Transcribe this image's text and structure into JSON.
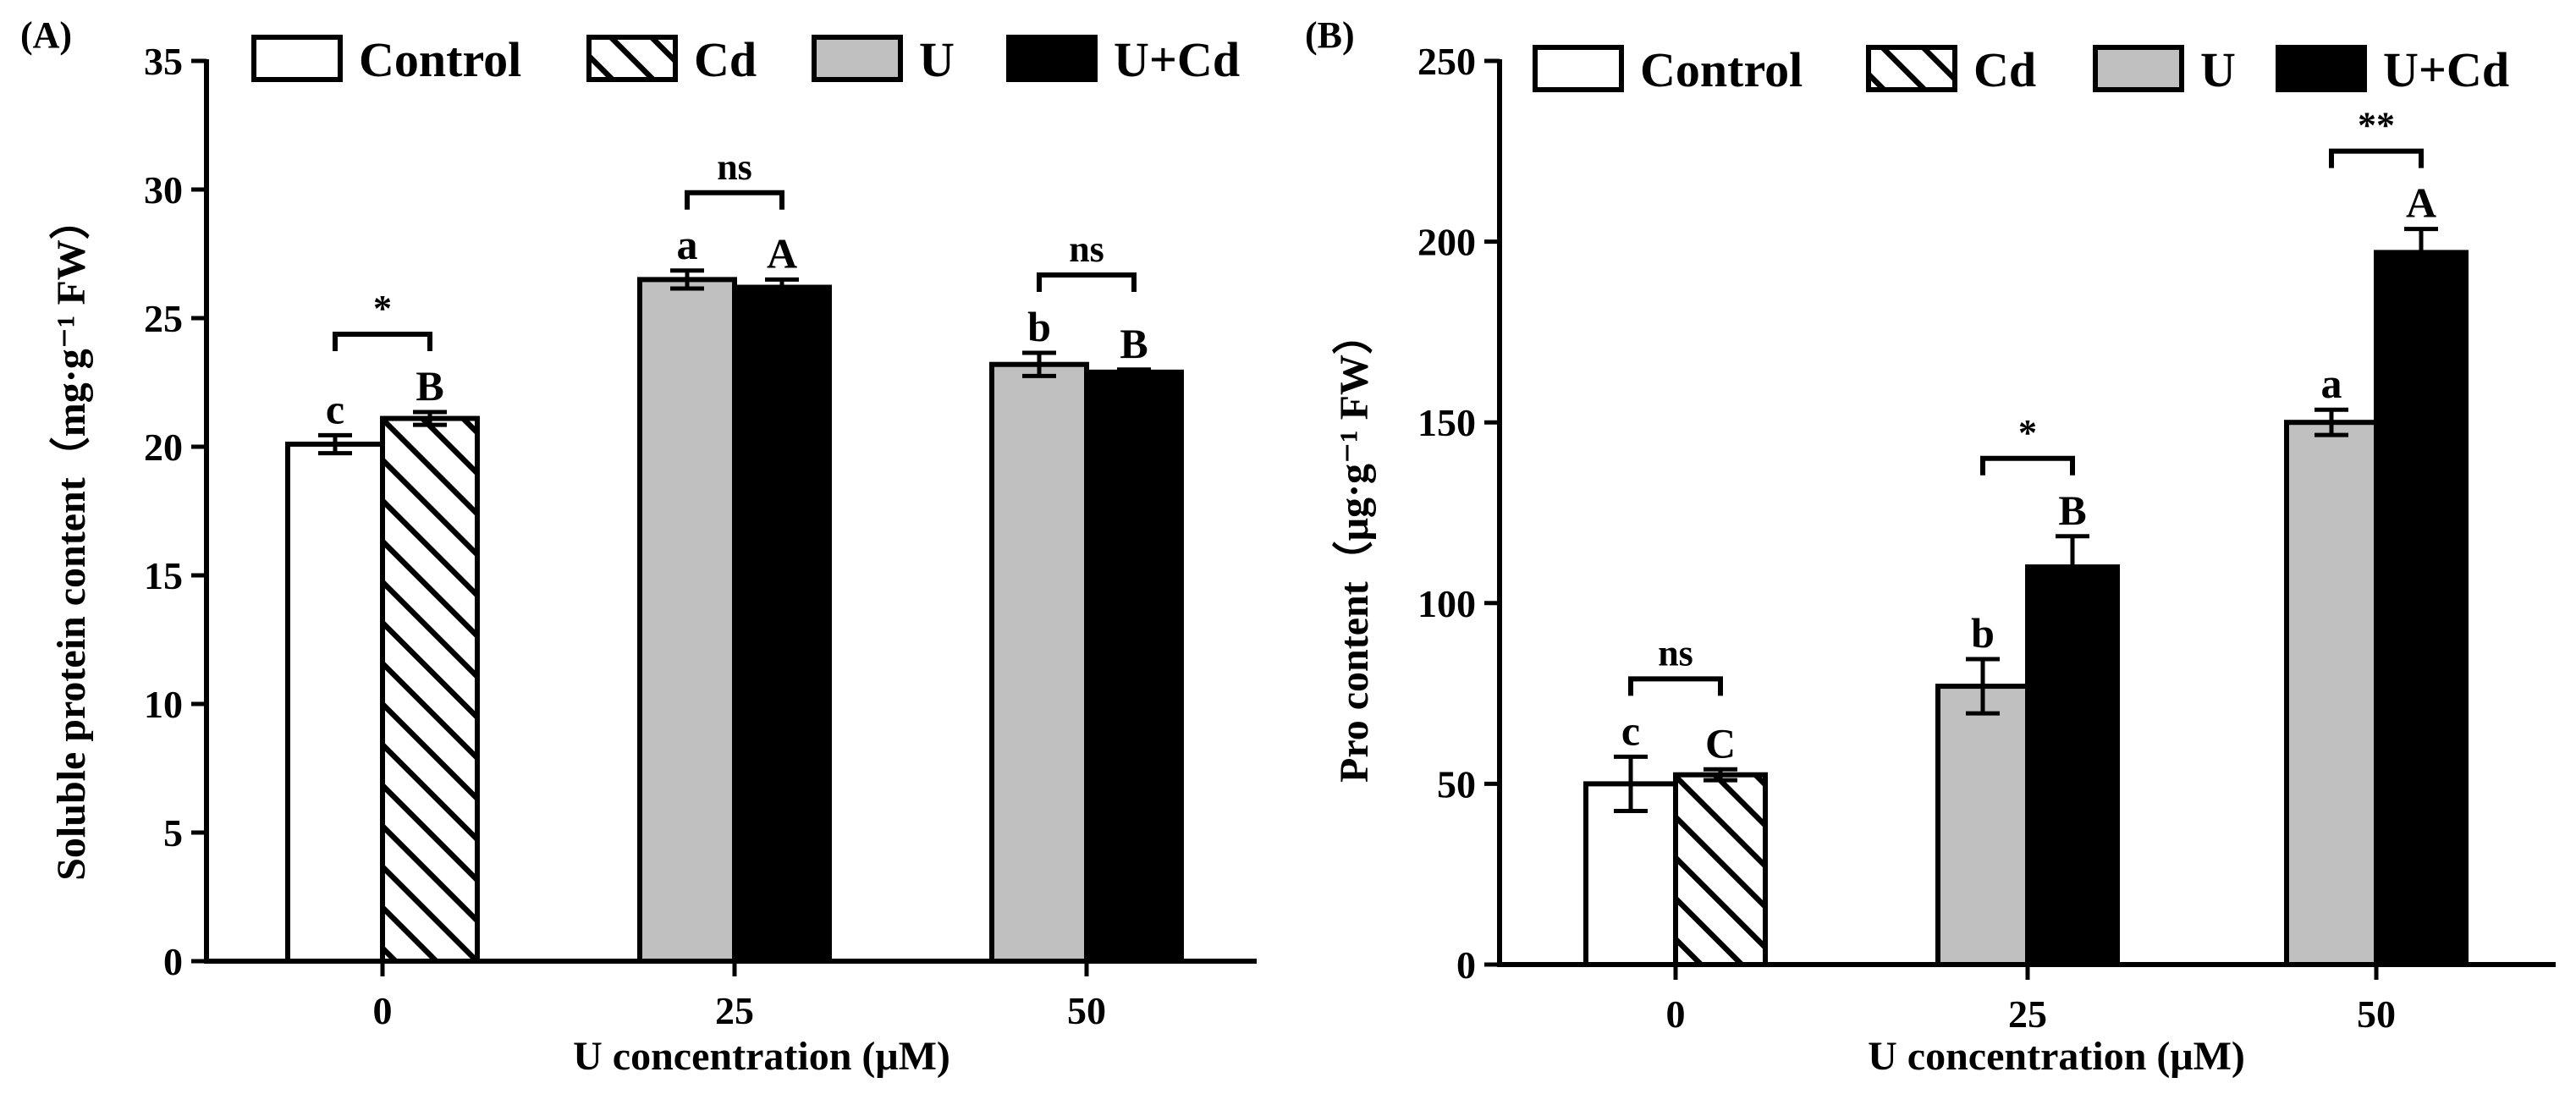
{
  "colors": {
    "control": "#ffffff",
    "cd": "hatch",
    "u": "#c0c0c0",
    "ucd": "#000000",
    "stroke": "#000000"
  },
  "chart_data": [
    {
      "type": "bar",
      "panel_label": "(A)",
      "title": "",
      "xlabel": "U concentration (μM)",
      "ylabel": "Soluble protein content（mg·g⁻¹ FW）",
      "ylim": [
        0,
        35
      ],
      "yticks": [
        0,
        5,
        10,
        15,
        20,
        25,
        30,
        35
      ],
      "legend": [
        "Control",
        "Cd",
        "U",
        "U+Cd"
      ],
      "legend_position": "top",
      "categories": [
        "0",
        "25",
        "50"
      ],
      "groups": [
        {
          "category": "0",
          "bars": [
            {
              "series": "Control",
              "value": 20.1,
              "error": 0.35,
              "letter": "c"
            },
            {
              "series": "Cd",
              "value": 21.1,
              "error": 0.25,
              "letter": "B"
            }
          ],
          "significance": "*"
        },
        {
          "category": "25",
          "bars": [
            {
              "series": "U",
              "value": 26.5,
              "error": 0.35,
              "letter": "a"
            },
            {
              "series": "U+Cd",
              "value": 26.2,
              "error": 0.3,
              "letter": "A"
            }
          ],
          "significance": "ns"
        },
        {
          "category": "50",
          "bars": [
            {
              "series": "U",
              "value": 23.2,
              "error": 0.45,
              "letter": "b"
            },
            {
              "series": "U+Cd",
              "value": 22.9,
              "error": 0.1,
              "letter": "B"
            }
          ],
          "significance": "ns"
        }
      ]
    },
    {
      "type": "bar",
      "panel_label": "(B)",
      "title": "",
      "xlabel": "U concentration (μM)",
      "ylabel": "Pro content（μg·g⁻¹ FW）",
      "ylim": [
        0,
        250
      ],
      "yticks": [
        0,
        50,
        100,
        150,
        200,
        250
      ],
      "legend": [
        "Control",
        "Cd",
        "U",
        "U+Cd"
      ],
      "legend_position": "top",
      "categories": [
        "0",
        "25",
        "50"
      ],
      "groups": [
        {
          "category": "0",
          "bars": [
            {
              "series": "Control",
              "value": 50,
              "error": 7.5,
              "letter": "c"
            },
            {
              "series": "Cd",
              "value": 52.5,
              "error": 1.5,
              "letter": "C"
            }
          ],
          "significance": "ns"
        },
        {
          "category": "25",
          "bars": [
            {
              "series": "U",
              "value": 77,
              "error": 7.5,
              "letter": "b"
            },
            {
              "series": "U+Cd",
              "value": 110,
              "error": 8.5,
              "letter": "B"
            }
          ],
          "significance": "*"
        },
        {
          "category": "50",
          "bars": [
            {
              "series": "U",
              "value": 150,
              "error": 3.5,
              "letter": "a"
            },
            {
              "series": "U+Cd",
              "value": 197,
              "error": 6.5,
              "letter": "A"
            }
          ],
          "significance": "**"
        }
      ]
    }
  ]
}
